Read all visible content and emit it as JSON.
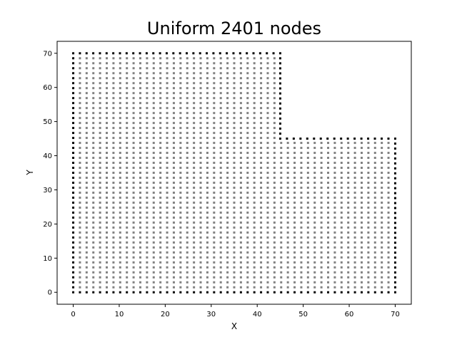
{
  "chart_data": {
    "type": "scatter",
    "title": "Uniform 2401 nodes",
    "xlabel": "X",
    "ylabel": "Y",
    "xlim": [
      -3.5,
      73.5
    ],
    "ylim": [
      -3.5,
      73.5
    ],
    "xticks": [
      "0",
      "10",
      "20",
      "30",
      "40",
      "50",
      "60",
      "70"
    ],
    "yticks": [
      "0",
      "10",
      "20",
      "30",
      "40",
      "50",
      "60",
      "70"
    ],
    "grid": false,
    "legend": "none",
    "series": [
      {
        "role": "interior nodes",
        "color": "#808080",
        "x_range": [
          0,
          70
        ],
        "y_range": [
          0,
          70
        ],
        "spacing": 1.458,
        "count_per_axis": 49
      },
      {
        "role": "boundary nodes",
        "color": "#000000",
        "boundary_polyline": [
          [
            0,
            0
          ],
          [
            70,
            0
          ],
          [
            70,
            45
          ],
          [
            45,
            45
          ],
          [
            45,
            70
          ],
          [
            0,
            70
          ],
          [
            0,
            0
          ]
        ]
      }
    ]
  }
}
